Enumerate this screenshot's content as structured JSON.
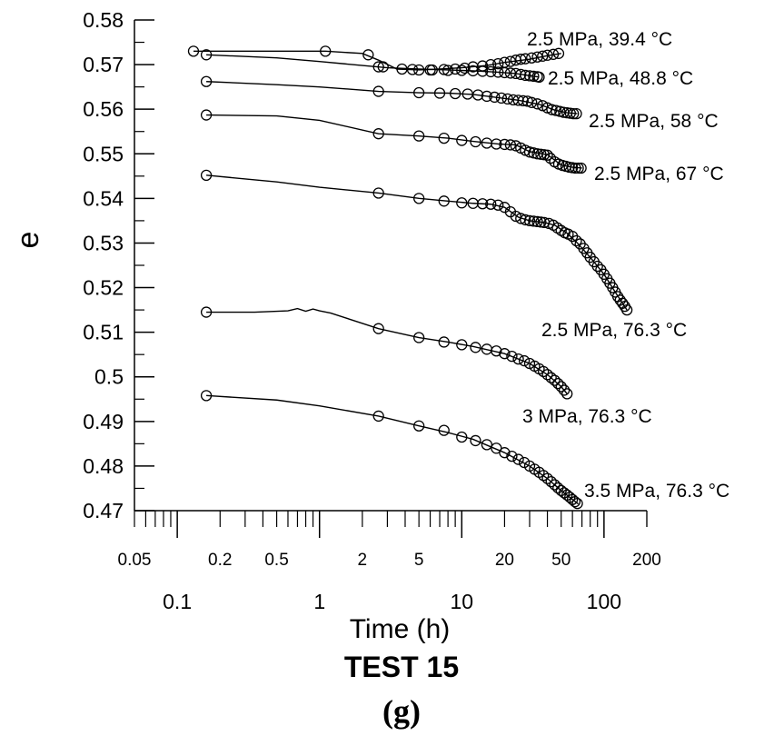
{
  "chart_data": {
    "type": "line",
    "x_scale": "log",
    "xlabel": "Time (h)",
    "ylabel": "e",
    "xlim": [
      0.05,
      200
    ],
    "ylim": [
      0.47,
      0.58
    ],
    "y_ticks": [
      "0.47",
      "0.48",
      "0.49",
      "0.5",
      "0.51",
      "0.52",
      "0.53",
      "0.54",
      "0.55",
      "0.56",
      "0.57",
      "0.58"
    ],
    "x_ticks_row1": [
      "0.05",
      "0.2",
      "0.5",
      "2",
      "5",
      "20",
      "50",
      "200"
    ],
    "x_ticks_row2": [
      "0.1",
      "1",
      "10",
      "100"
    ],
    "test_label": "TEST 15",
    "panel_label": "(g)",
    "grid": false,
    "marker": "open-circle",
    "series": [
      {
        "name": "2.5 MPa, 39.4 °C",
        "line": [
          [
            0.13,
            0.573
          ],
          [
            0.5,
            0.573
          ],
          [
            1.1,
            0.573
          ],
          [
            2,
            0.5725
          ],
          [
            2.6,
            0.571
          ],
          [
            3.5,
            0.569
          ],
          [
            5,
            0.5688
          ],
          [
            7,
            0.569
          ],
          [
            10,
            0.5693
          ],
          [
            15,
            0.5698
          ],
          [
            20,
            0.5705
          ],
          [
            30,
            0.5712
          ],
          [
            40,
            0.572
          ],
          [
            50,
            0.5725
          ]
        ],
        "markers": [
          [
            0.13,
            0.573
          ],
          [
            1.1,
            0.573
          ],
          [
            2.2,
            0.5722
          ],
          [
            2.8,
            0.5695
          ],
          [
            3.8,
            0.569
          ],
          [
            5,
            0.5688
          ],
          [
            6.2,
            0.5688
          ],
          [
            7.5,
            0.5689
          ],
          [
            9,
            0.569
          ],
          [
            10.5,
            0.5692
          ],
          [
            12,
            0.5695
          ],
          [
            14,
            0.5697
          ],
          [
            16,
            0.57
          ],
          [
            18,
            0.5702
          ],
          [
            20,
            0.5705
          ],
          [
            22,
            0.5707
          ],
          [
            24,
            0.571
          ],
          [
            26,
            0.5712
          ],
          [
            28,
            0.5713
          ],
          [
            31,
            0.5715
          ],
          [
            34,
            0.5717
          ],
          [
            37,
            0.5719
          ],
          [
            40,
            0.5721
          ],
          [
            44,
            0.5723
          ],
          [
            48,
            0.5725
          ]
        ]
      },
      {
        "name": "2.5 MPa, 48.8 °C",
        "line": [
          [
            0.16,
            0.5722
          ],
          [
            0.5,
            0.5715
          ],
          [
            1,
            0.5707
          ],
          [
            2,
            0.5698
          ],
          [
            3,
            0.5693
          ],
          [
            5,
            0.569
          ],
          [
            8,
            0.5688
          ],
          [
            12,
            0.5686
          ],
          [
            18,
            0.5683
          ],
          [
            24,
            0.568
          ],
          [
            30,
            0.5675
          ],
          [
            35,
            0.5672
          ]
        ],
        "markers": [
          [
            0.16,
            0.5722
          ],
          [
            2.6,
            0.5695
          ],
          [
            4.5,
            0.5689
          ],
          [
            6,
            0.5688
          ],
          [
            8,
            0.5687
          ],
          [
            10,
            0.5687
          ],
          [
            12,
            0.5686
          ],
          [
            14,
            0.5685
          ],
          [
            16,
            0.5684
          ],
          [
            18,
            0.5683
          ],
          [
            20,
            0.5682
          ],
          [
            22,
            0.5681
          ],
          [
            24,
            0.568
          ],
          [
            26,
            0.5678
          ],
          [
            28,
            0.5676
          ],
          [
            30,
            0.5675
          ],
          [
            32,
            0.5674
          ],
          [
            34,
            0.5673
          ],
          [
            35,
            0.5672
          ]
        ]
      },
      {
        "name": "2.5 MPa, 58 °C",
        "line": [
          [
            0.16,
            0.5662
          ],
          [
            0.5,
            0.5655
          ],
          [
            1,
            0.565
          ],
          [
            2.6,
            0.564
          ],
          [
            5,
            0.5637
          ],
          [
            8,
            0.5636
          ],
          [
            12,
            0.5633
          ],
          [
            18,
            0.5626
          ],
          [
            25,
            0.562
          ],
          [
            35,
            0.5611
          ],
          [
            45,
            0.5598
          ],
          [
            55,
            0.5592
          ],
          [
            65,
            0.559
          ]
        ],
        "markers": [
          [
            0.16,
            0.5662
          ],
          [
            2.6,
            0.564
          ],
          [
            5,
            0.5637
          ],
          [
            7,
            0.5636
          ],
          [
            9,
            0.5635
          ],
          [
            11,
            0.5634
          ],
          [
            13,
            0.5632
          ],
          [
            15,
            0.5629
          ],
          [
            17,
            0.5627
          ],
          [
            19,
            0.5625
          ],
          [
            21,
            0.5623
          ],
          [
            23,
            0.5621
          ],
          [
            25,
            0.562
          ],
          [
            27,
            0.5619
          ],
          [
            29,
            0.5618
          ],
          [
            31,
            0.5615
          ],
          [
            34,
            0.5612
          ],
          [
            37,
            0.5608
          ],
          [
            40,
            0.5603
          ],
          [
            43,
            0.5599
          ],
          [
            46,
            0.5597
          ],
          [
            49,
            0.5595
          ],
          [
            52,
            0.5593
          ],
          [
            55,
            0.5592
          ],
          [
            58,
            0.5591
          ],
          [
            61,
            0.559
          ],
          [
            64,
            0.559
          ]
        ]
      },
      {
        "name": "2.5 MPa, 67 °C",
        "line": [
          [
            0.16,
            0.5587
          ],
          [
            0.5,
            0.5585
          ],
          [
            1,
            0.5575
          ],
          [
            2.6,
            0.5545
          ],
          [
            5,
            0.554
          ],
          [
            8,
            0.5535
          ],
          [
            12,
            0.5528
          ],
          [
            18,
            0.5522
          ],
          [
            24,
            0.552
          ],
          [
            30,
            0.5505
          ],
          [
            40,
            0.5498
          ],
          [
            50,
            0.5475
          ],
          [
            60,
            0.547
          ],
          [
            70,
            0.5468
          ]
        ],
        "markers": [
          [
            0.16,
            0.5587
          ],
          [
            2.6,
            0.5545
          ],
          [
            5,
            0.554
          ],
          [
            7.5,
            0.5535
          ],
          [
            10,
            0.553
          ],
          [
            12.5,
            0.5527
          ],
          [
            15,
            0.5524
          ],
          [
            17.5,
            0.5522
          ],
          [
            20,
            0.5521
          ],
          [
            22,
            0.552
          ],
          [
            24,
            0.5518
          ],
          [
            26,
            0.5513
          ],
          [
            28,
            0.5508
          ],
          [
            30,
            0.5504
          ],
          [
            32,
            0.5502
          ],
          [
            34,
            0.55
          ],
          [
            36,
            0.5499
          ],
          [
            38,
            0.5498
          ],
          [
            40,
            0.5497
          ],
          [
            42,
            0.549
          ],
          [
            45,
            0.5482
          ],
          [
            48,
            0.5477
          ],
          [
            51,
            0.5474
          ],
          [
            54,
            0.5472
          ],
          [
            57,
            0.547
          ],
          [
            60,
            0.5469
          ],
          [
            63,
            0.5468
          ],
          [
            66,
            0.5468
          ],
          [
            69,
            0.5468
          ]
        ]
      },
      {
        "name": "2.5 MPa, 76.3 °C",
        "line": [
          [
            0.16,
            0.5452
          ],
          [
            0.5,
            0.5437
          ],
          [
            1,
            0.5425
          ],
          [
            2.6,
            0.5412
          ],
          [
            5,
            0.54
          ],
          [
            8,
            0.5394
          ],
          [
            12,
            0.5389
          ],
          [
            16,
            0.5387
          ],
          [
            20,
            0.538
          ],
          [
            25,
            0.5358
          ],
          [
            30,
            0.535
          ],
          [
            38,
            0.5346
          ],
          [
            45,
            0.534
          ],
          [
            55,
            0.5322
          ],
          [
            65,
            0.53
          ],
          [
            80,
            0.5268
          ],
          [
            100,
            0.523
          ],
          [
            120,
            0.519
          ],
          [
            135,
            0.5165
          ],
          [
            145,
            0.515
          ]
        ],
        "markers": [
          [
            0.16,
            0.5452
          ],
          [
            2.6,
            0.5412
          ],
          [
            5,
            0.54
          ],
          [
            7.5,
            0.5394
          ],
          [
            10,
            0.539
          ],
          [
            12,
            0.5389
          ],
          [
            14,
            0.5388
          ],
          [
            16,
            0.5387
          ],
          [
            18,
            0.5385
          ],
          [
            20,
            0.538
          ],
          [
            22,
            0.537
          ],
          [
            24,
            0.536
          ],
          [
            26,
            0.5355
          ],
          [
            28,
            0.5352
          ],
          [
            30,
            0.535
          ],
          [
            32,
            0.5349
          ],
          [
            34,
            0.5348
          ],
          [
            36,
            0.5347
          ],
          [
            38,
            0.5346
          ],
          [
            41,
            0.5344
          ],
          [
            44,
            0.534
          ],
          [
            47,
            0.5334
          ],
          [
            50,
            0.5328
          ],
          [
            53,
            0.5323
          ],
          [
            56,
            0.532
          ],
          [
            60,
            0.5315
          ],
          [
            64,
            0.5305
          ],
          [
            68,
            0.5298
          ],
          [
            72,
            0.5288
          ],
          [
            76,
            0.5278
          ],
          [
            80,
            0.5268
          ],
          [
            85,
            0.5258
          ],
          [
            90,
            0.5248
          ],
          [
            95,
            0.524
          ],
          [
            100,
            0.523
          ],
          [
            105,
            0.522
          ],
          [
            110,
            0.521
          ],
          [
            115,
            0.52
          ],
          [
            120,
            0.519
          ],
          [
            125,
            0.518
          ],
          [
            130,
            0.5172
          ],
          [
            135,
            0.5165
          ],
          [
            140,
            0.5158
          ],
          [
            145,
            0.515
          ]
        ]
      },
      {
        "name": "3 MPa, 76.3 °C",
        "line": [
          [
            0.16,
            0.5145
          ],
          [
            0.35,
            0.5145
          ],
          [
            0.6,
            0.5148
          ],
          [
            0.7,
            0.5153
          ],
          [
            0.8,
            0.5147
          ],
          [
            0.9,
            0.5152
          ],
          [
            1,
            0.5148
          ],
          [
            1.2,
            0.5143
          ],
          [
            1.6,
            0.513
          ],
          [
            2.6,
            0.5108
          ],
          [
            5,
            0.5088
          ],
          [
            8,
            0.5078
          ],
          [
            12,
            0.5068
          ],
          [
            20,
            0.5052
          ],
          [
            30,
            0.503
          ],
          [
            40,
            0.5005
          ],
          [
            50,
            0.4978
          ],
          [
            55,
            0.4962
          ]
        ],
        "markers": [
          [
            0.16,
            0.5145
          ],
          [
            2.6,
            0.5108
          ],
          [
            5,
            0.5088
          ],
          [
            7.5,
            0.5078
          ],
          [
            10,
            0.5072
          ],
          [
            12.5,
            0.5066
          ],
          [
            15,
            0.5062
          ],
          [
            17.5,
            0.5058
          ],
          [
            20,
            0.5052
          ],
          [
            22.5,
            0.5046
          ],
          [
            25,
            0.504
          ],
          [
            27.5,
            0.5036
          ],
          [
            30,
            0.503
          ],
          [
            32.5,
            0.5024
          ],
          [
            35,
            0.5018
          ],
          [
            37.5,
            0.5012
          ],
          [
            40,
            0.5005
          ],
          [
            42.5,
            0.4998
          ],
          [
            45,
            0.4992
          ],
          [
            47.5,
            0.4985
          ],
          [
            50,
            0.4978
          ],
          [
            52.5,
            0.497
          ],
          [
            55,
            0.4962
          ]
        ]
      },
      {
        "name": "3.5 MPa, 76.3 °C",
        "line": [
          [
            0.16,
            0.4958
          ],
          [
            0.5,
            0.4948
          ],
          [
            1,
            0.4935
          ],
          [
            2.6,
            0.4912
          ],
          [
            5,
            0.489
          ],
          [
            8,
            0.4875
          ],
          [
            12,
            0.486
          ],
          [
            20,
            0.483
          ],
          [
            30,
            0.48
          ],
          [
            40,
            0.4772
          ],
          [
            50,
            0.4745
          ],
          [
            60,
            0.4725
          ],
          [
            66,
            0.4715
          ]
        ],
        "markers": [
          [
            0.16,
            0.4958
          ],
          [
            2.6,
            0.4912
          ],
          [
            5,
            0.489
          ],
          [
            7.5,
            0.488
          ],
          [
            10,
            0.4865
          ],
          [
            12.5,
            0.4857
          ],
          [
            15,
            0.4848
          ],
          [
            17.5,
            0.484
          ],
          [
            20,
            0.483
          ],
          [
            22.5,
            0.4822
          ],
          [
            25,
            0.4815
          ],
          [
            27.5,
            0.4808
          ],
          [
            30,
            0.48
          ],
          [
            32.5,
            0.4793
          ],
          [
            35,
            0.4786
          ],
          [
            37.5,
            0.4779
          ],
          [
            40,
            0.4772
          ],
          [
            42.5,
            0.4765
          ],
          [
            45,
            0.4758
          ],
          [
            47.5,
            0.4751
          ],
          [
            50,
            0.4745
          ],
          [
            52.5,
            0.474
          ],
          [
            55,
            0.4735
          ],
          [
            57.5,
            0.473
          ],
          [
            60,
            0.4725
          ],
          [
            62.5,
            0.472
          ],
          [
            65,
            0.4716
          ]
        ]
      }
    ]
  }
}
